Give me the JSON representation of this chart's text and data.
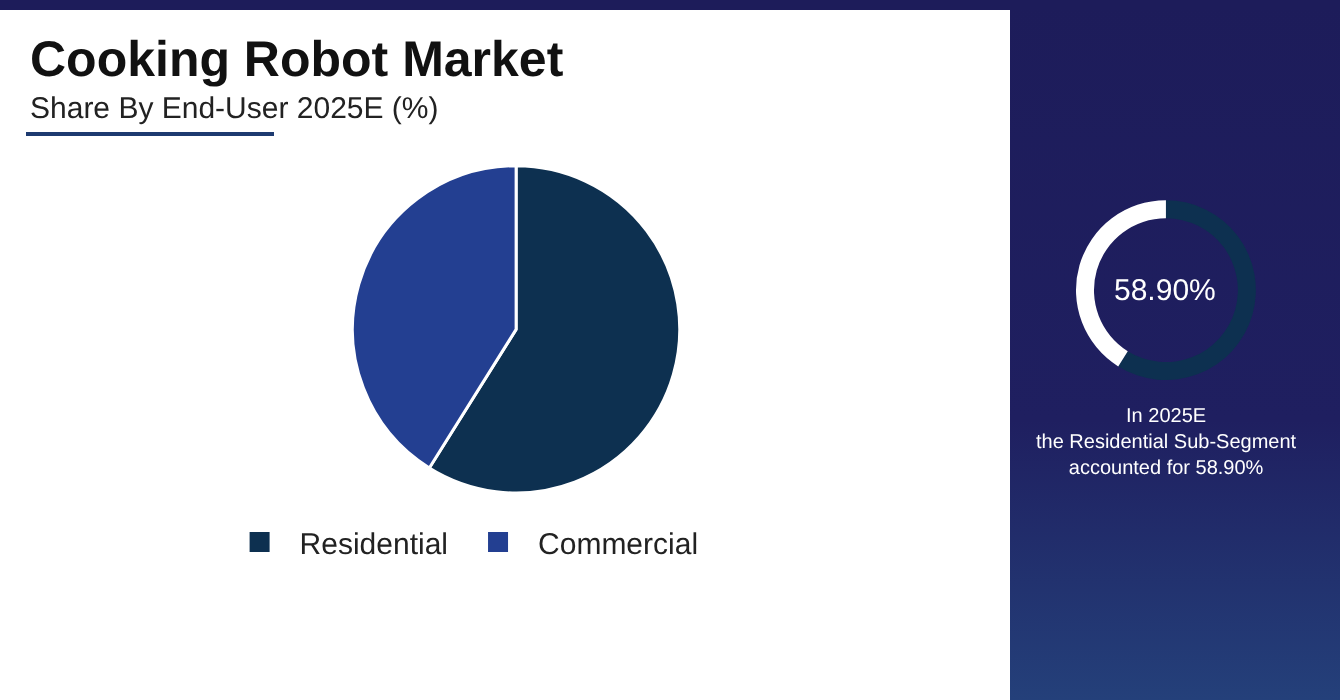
{
  "chart_data": [
    {
      "type": "pie",
      "title": "Cooking Robot Market",
      "subtitle": "Share By End-User 2025E (%)",
      "categories": [
        "Residential",
        "Commercial"
      ],
      "values": [
        58.9,
        41.1
      ],
      "colors": [
        "#0d3050",
        "#233f91"
      ],
      "legend": "bottom"
    },
    {
      "type": "donut",
      "categories": [
        null,
        null
      ],
      "values": [
        58.9,
        41.1
      ],
      "colors": [
        "#0d3050",
        "#ffffff"
      ],
      "legend": false,
      "annotations": [
        "58.90%",
        "In 2025E\nthe Residential Sub-Segment\naccounted for 58.90%"
      ]
    }
  ]
}
